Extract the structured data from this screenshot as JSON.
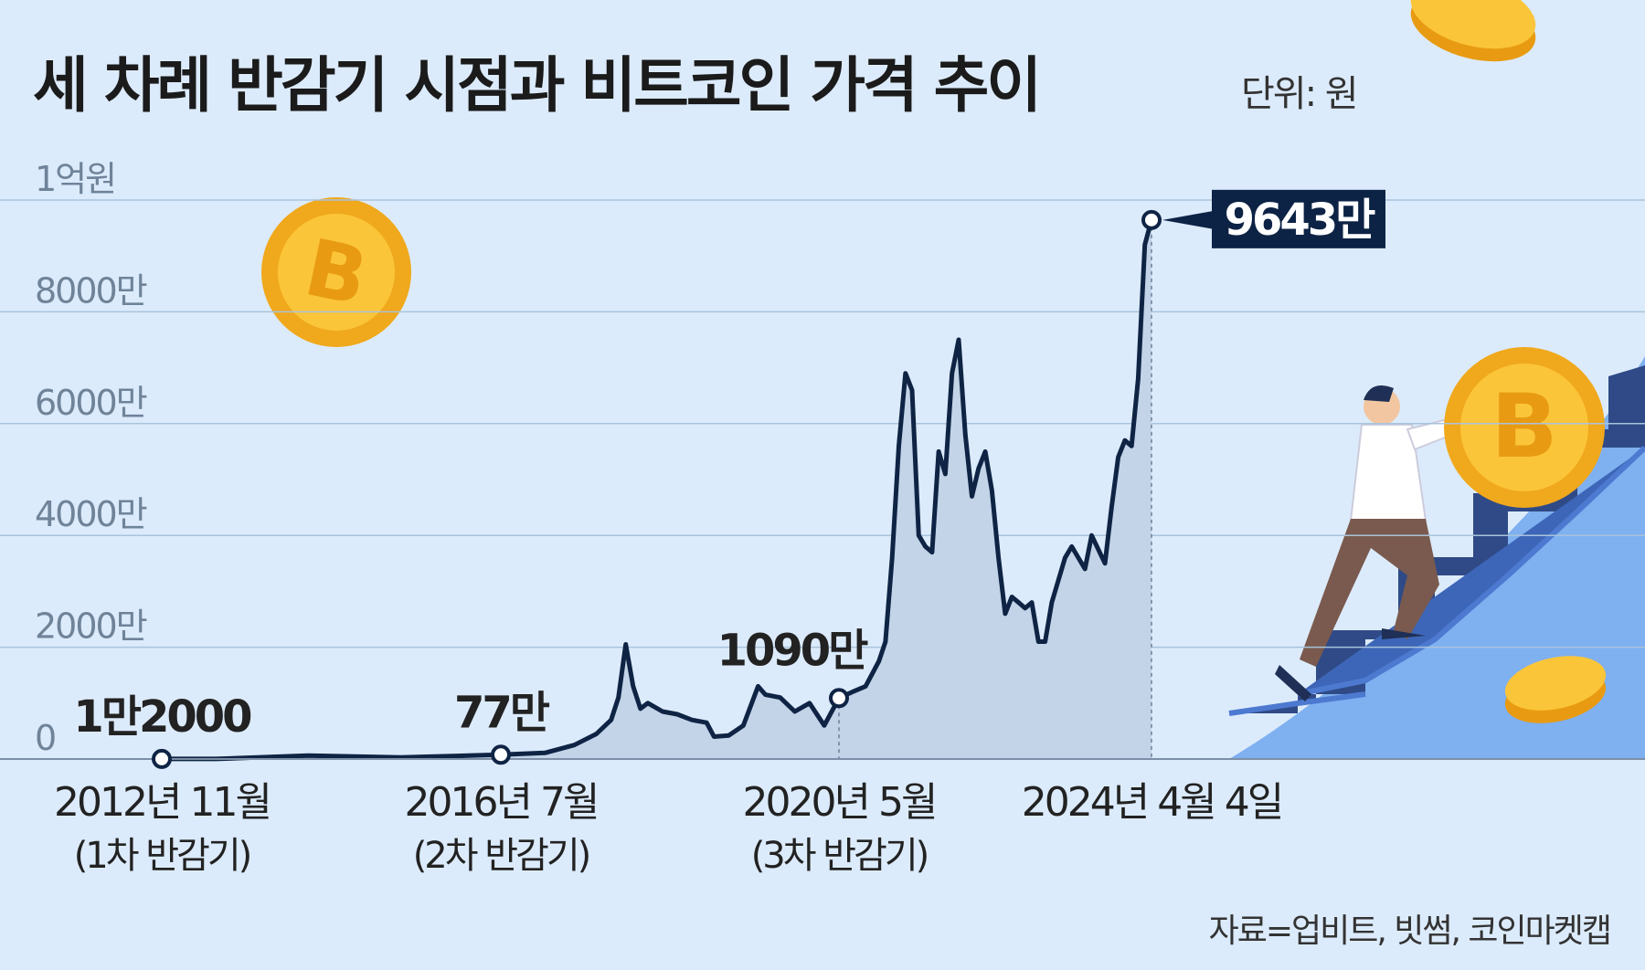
{
  "title": "세 차례 반감기 시점과 비트코인 가격 추이",
  "unit": "단위: 원",
  "source": "자료=업비트, 빗썸, 코인마켓캡",
  "colors": {
    "background": "#dcebfb",
    "line": "#0f2444",
    "area": "#c3d4e8",
    "grid": "#a9c3dc",
    "label_box": "#0d2345"
  },
  "chart_data": {
    "type": "area",
    "title": "세 차례 반감기 시점과 비트코인 가격 추이",
    "ylabel": "",
    "xlabel": "",
    "ylim": [
      0,
      10000
    ],
    "y_unit": "만원",
    "grid": true,
    "y_ticks": [
      {
        "value": 0,
        "label": "0"
      },
      {
        "value": 2000,
        "label": "2000만"
      },
      {
        "value": 4000,
        "label": "4000만"
      },
      {
        "value": 6000,
        "label": "6000만"
      },
      {
        "value": 8000,
        "label": "8000만"
      },
      {
        "value": 10000,
        "label": "1억원"
      }
    ],
    "x_ticks": [
      {
        "date": "2012-11",
        "label": "2012년 11월",
        "sub": "(1차 반감기)"
      },
      {
        "date": "2016-07",
        "label": "2016년 7월",
        "sub": "(2차 반감기)"
      },
      {
        "date": "2020-05",
        "label": "2020년 5월",
        "sub": "(3차 반감기)"
      },
      {
        "date": "2024-04",
        "label": "2024년 4월 4일",
        "sub": ""
      }
    ],
    "annotations": [
      {
        "date": "2012-11",
        "value": 1.2,
        "label": "1만2000"
      },
      {
        "date": "2016-07",
        "value": 77,
        "label": "77만"
      },
      {
        "date": "2020-05",
        "value": 1090,
        "label": "1090만"
      },
      {
        "date": "2024-04",
        "value": 9643,
        "label": "9643만",
        "boxed": true
      }
    ],
    "series": [
      {
        "points": [
          [
            "2012-11",
            1.2
          ],
          [
            "2013-06",
            1.5
          ],
          [
            "2014-06",
            60
          ],
          [
            "2015-06",
            30
          ],
          [
            "2016-07",
            77
          ],
          [
            "2017-01",
            110
          ],
          [
            "2017-05",
            250
          ],
          [
            "2017-08",
            450
          ],
          [
            "2017-10",
            700
          ],
          [
            "2017-11",
            1100
          ],
          [
            "2017-12",
            2050
          ],
          [
            "2018-01",
            1300
          ],
          [
            "2018-02",
            900
          ],
          [
            "2018-03",
            1000
          ],
          [
            "2018-05",
            850
          ],
          [
            "2018-07",
            800
          ],
          [
            "2018-09",
            700
          ],
          [
            "2018-11",
            650
          ],
          [
            "2018-12",
            400
          ],
          [
            "2019-02",
            420
          ],
          [
            "2019-04",
            600
          ],
          [
            "2019-06",
            1300
          ],
          [
            "2019-07",
            1150
          ],
          [
            "2019-09",
            1100
          ],
          [
            "2019-11",
            850
          ],
          [
            "2020-01",
            1000
          ],
          [
            "2020-03",
            600
          ],
          [
            "2020-05",
            1090
          ],
          [
            "2020-07",
            1200
          ],
          [
            "2020-09",
            1300
          ],
          [
            "2020-11",
            1750
          ],
          [
            "2020-12",
            2100
          ],
          [
            "2021-01",
            3600
          ],
          [
            "2021-02",
            5600
          ],
          [
            "2021-03",
            6900
          ],
          [
            "2021-04",
            6600
          ],
          [
            "2021-05",
            4000
          ],
          [
            "2021-06",
            3800
          ],
          [
            "2021-07",
            3700
          ],
          [
            "2021-08",
            5500
          ],
          [
            "2021-09",
            5100
          ],
          [
            "2021-10",
            6900
          ],
          [
            "2021-11",
            7500
          ],
          [
            "2021-12",
            5800
          ],
          [
            "2022-01",
            4700
          ],
          [
            "2022-02",
            5200
          ],
          [
            "2022-03",
            5500
          ],
          [
            "2022-04",
            4800
          ],
          [
            "2022-05",
            3600
          ],
          [
            "2022-06",
            2600
          ],
          [
            "2022-07",
            2900
          ],
          [
            "2022-08",
            2800
          ],
          [
            "2022-09",
            2700
          ],
          [
            "2022-10",
            2800
          ],
          [
            "2022-11",
            2100
          ],
          [
            "2022-12",
            2100
          ],
          [
            "2023-01",
            2800
          ],
          [
            "2023-03",
            3600
          ],
          [
            "2023-04",
            3800
          ],
          [
            "2023-06",
            3400
          ],
          [
            "2023-07",
            4000
          ],
          [
            "2023-09",
            3500
          ],
          [
            "2023-10",
            4500
          ],
          [
            "2023-11",
            5400
          ],
          [
            "2023-12",
            5700
          ],
          [
            "2024-01",
            5600
          ],
          [
            "2024-02",
            6800
          ],
          [
            "2024-03",
            9200
          ],
          [
            "2024-04",
            9643
          ]
        ]
      }
    ]
  }
}
